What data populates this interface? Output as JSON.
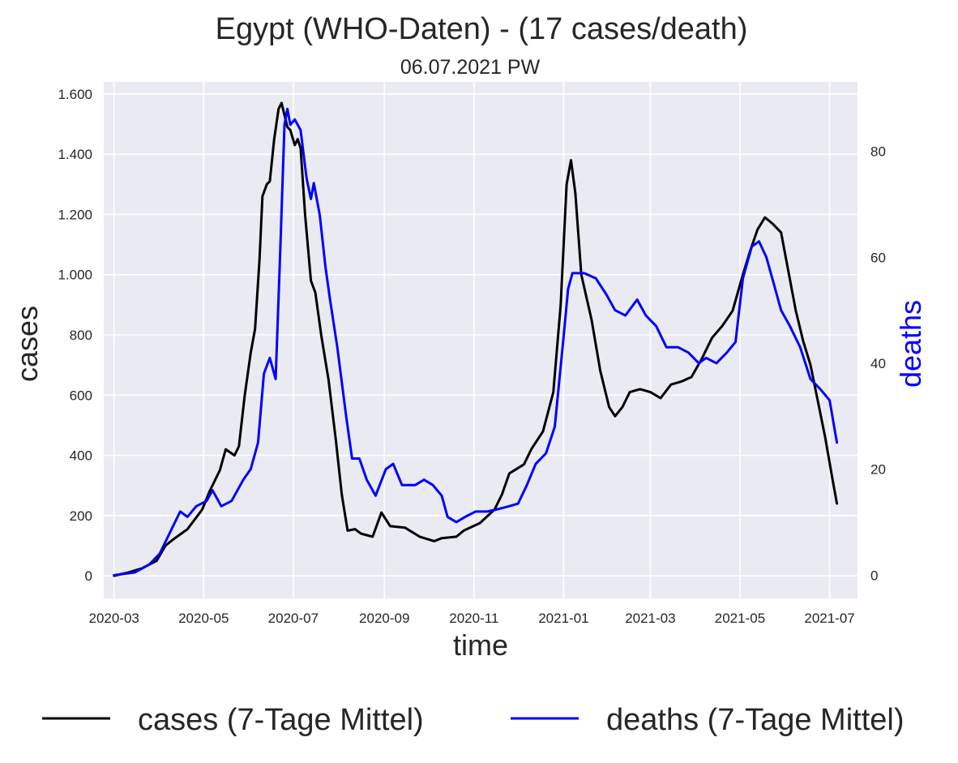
{
  "chart_data": {
    "type": "line",
    "title": "Egypt (WHO-Daten) - (17 cases/death)",
    "subtitle": "06.07.2021 PW",
    "xlabel": "time",
    "ylabel_left": "cases",
    "ylabel_right": "deaths",
    "x_ticks": [
      "2020-03",
      "2020-05",
      "2020-07",
      "2020-09",
      "2020-11",
      "2021-01",
      "2021-03",
      "2021-05",
      "2021-07"
    ],
    "y_left_ticks": [
      {
        "value": 0,
        "label": "0"
      },
      {
        "value": 200,
        "label": "200"
      },
      {
        "value": 400,
        "label": "400"
      },
      {
        "value": 600,
        "label": "600"
      },
      {
        "value": 800,
        "label": "800"
      },
      {
        "value": 1000,
        "label": "1.000"
      },
      {
        "value": 1200,
        "label": "1.200"
      },
      {
        "value": 1400,
        "label": "1.400"
      },
      {
        "value": 1600,
        "label": "1.600"
      }
    ],
    "y_right_ticks": [
      {
        "value": 0,
        "label": "0"
      },
      {
        "value": 20,
        "label": "20"
      },
      {
        "value": 40,
        "label": "40"
      },
      {
        "value": 60,
        "label": "60"
      },
      {
        "value": 80,
        "label": "80"
      }
    ],
    "x_range": [
      "2020-02-23",
      "2021-07-20"
    ],
    "ylim_left": [
      -75,
      1640
    ],
    "ylim_right": [
      -4.4,
      93.1
    ],
    "grid": true,
    "legend_position": "bottom, outside",
    "series": [
      {
        "name": "cases (7-Tage Mittel)",
        "color": "#000000",
        "axis": "left",
        "points": [
          [
            "2020-03-01",
            0
          ],
          [
            "2020-03-10",
            10
          ],
          [
            "2020-03-20",
            25
          ],
          [
            "2020-03-30",
            50
          ],
          [
            "2020-04-05",
            100
          ],
          [
            "2020-04-10",
            120
          ],
          [
            "2020-04-20",
            155
          ],
          [
            "2020-04-30",
            220
          ],
          [
            "2020-05-05",
            280
          ],
          [
            "2020-05-12",
            350
          ],
          [
            "2020-05-16",
            420
          ],
          [
            "2020-05-22",
            400
          ],
          [
            "2020-05-25",
            430
          ],
          [
            "2020-05-29",
            600
          ],
          [
            "2020-06-02",
            740
          ],
          [
            "2020-06-05",
            820
          ],
          [
            "2020-06-08",
            1050
          ],
          [
            "2020-06-10",
            1260
          ],
          [
            "2020-06-13",
            1300
          ],
          [
            "2020-06-15",
            1310
          ],
          [
            "2020-06-18",
            1450
          ],
          [
            "2020-06-21",
            1550
          ],
          [
            "2020-06-23",
            1570
          ],
          [
            "2020-06-25",
            1530
          ],
          [
            "2020-06-27",
            1490
          ],
          [
            "2020-06-29",
            1480
          ],
          [
            "2020-07-02",
            1430
          ],
          [
            "2020-07-04",
            1450
          ],
          [
            "2020-07-06",
            1420
          ],
          [
            "2020-07-09",
            1200
          ],
          [
            "2020-07-13",
            980
          ],
          [
            "2020-07-16",
            940
          ],
          [
            "2020-07-20",
            800
          ],
          [
            "2020-07-25",
            650
          ],
          [
            "2020-07-30",
            450
          ],
          [
            "2020-08-03",
            270
          ],
          [
            "2020-08-07",
            150
          ],
          [
            "2020-08-12",
            155
          ],
          [
            "2020-08-16",
            140
          ],
          [
            "2020-08-20",
            135
          ],
          [
            "2020-08-24",
            130
          ],
          [
            "2020-08-30",
            210
          ],
          [
            "2020-09-05",
            165
          ],
          [
            "2020-09-15",
            160
          ],
          [
            "2020-09-25",
            130
          ],
          [
            "2020-10-05",
            115
          ],
          [
            "2020-10-10",
            125
          ],
          [
            "2020-10-20",
            130
          ],
          [
            "2020-10-25",
            150
          ],
          [
            "2020-11-05",
            175
          ],
          [
            "2020-11-15",
            220
          ],
          [
            "2020-11-20",
            270
          ],
          [
            "2020-11-25",
            340
          ],
          [
            "2020-12-05",
            370
          ],
          [
            "2020-12-10",
            420
          ],
          [
            "2020-12-18",
            480
          ],
          [
            "2020-12-25",
            610
          ],
          [
            "2020-12-30",
            900
          ],
          [
            "2021-01-03",
            1300
          ],
          [
            "2021-01-06",
            1380
          ],
          [
            "2021-01-09",
            1270
          ],
          [
            "2021-01-13",
            1000
          ],
          [
            "2021-01-20",
            850
          ],
          [
            "2021-01-26",
            680
          ],
          [
            "2021-02-01",
            560
          ],
          [
            "2021-02-05",
            530
          ],
          [
            "2021-02-10",
            560
          ],
          [
            "2021-02-15",
            610
          ],
          [
            "2021-02-22",
            620
          ],
          [
            "2021-03-01",
            610
          ],
          [
            "2021-03-08",
            590
          ],
          [
            "2021-03-15",
            635
          ],
          [
            "2021-03-22",
            645
          ],
          [
            "2021-03-29",
            660
          ],
          [
            "2021-04-05",
            720
          ],
          [
            "2021-04-12",
            790
          ],
          [
            "2021-04-19",
            830
          ],
          [
            "2021-04-26",
            880
          ],
          [
            "2021-05-03",
            1000
          ],
          [
            "2021-05-08",
            1080
          ],
          [
            "2021-05-13",
            1150
          ],
          [
            "2021-05-18",
            1190
          ],
          [
            "2021-05-23",
            1170
          ],
          [
            "2021-05-29",
            1140
          ],
          [
            "2021-06-03",
            1010
          ],
          [
            "2021-06-08",
            880
          ],
          [
            "2021-06-13",
            780
          ],
          [
            "2021-06-18",
            700
          ],
          [
            "2021-06-23",
            580
          ],
          [
            "2021-06-28",
            460
          ],
          [
            "2021-07-03",
            320
          ],
          [
            "2021-07-06",
            240
          ]
        ]
      },
      {
        "name": "deaths (7-Tage Mittel)",
        "color": "#0000ff",
        "axis": "right",
        "points": [
          [
            "2020-03-01",
            0
          ],
          [
            "2020-03-15",
            0.5
          ],
          [
            "2020-03-25",
            2
          ],
          [
            "2020-04-01",
            4
          ],
          [
            "2020-04-08",
            8
          ],
          [
            "2020-04-15",
            12
          ],
          [
            "2020-04-20",
            11
          ],
          [
            "2020-04-26",
            13
          ],
          [
            "2020-05-03",
            14
          ],
          [
            "2020-05-07",
            16
          ],
          [
            "2020-05-13",
            13
          ],
          [
            "2020-05-20",
            14
          ],
          [
            "2020-05-28",
            18
          ],
          [
            "2020-06-02",
            20
          ],
          [
            "2020-06-07",
            25
          ],
          [
            "2020-06-11",
            38
          ],
          [
            "2020-06-15",
            41
          ],
          [
            "2020-06-19",
            37
          ],
          [
            "2020-06-22",
            60
          ],
          [
            "2020-06-25",
            85
          ],
          [
            "2020-06-27",
            88
          ],
          [
            "2020-06-29",
            85
          ],
          [
            "2020-07-02",
            86
          ],
          [
            "2020-07-06",
            84
          ],
          [
            "2020-07-10",
            75
          ],
          [
            "2020-07-13",
            71
          ],
          [
            "2020-07-15",
            74
          ],
          [
            "2020-07-19",
            68
          ],
          [
            "2020-07-23",
            58
          ],
          [
            "2020-07-26",
            52
          ],
          [
            "2020-07-31",
            43
          ],
          [
            "2020-08-06",
            30
          ],
          [
            "2020-08-10",
            22
          ],
          [
            "2020-08-15",
            22
          ],
          [
            "2020-08-20",
            18
          ],
          [
            "2020-08-26",
            15
          ],
          [
            "2020-09-02",
            20
          ],
          [
            "2020-09-07",
            21
          ],
          [
            "2020-09-13",
            17
          ],
          [
            "2020-09-22",
            17
          ],
          [
            "2020-09-28",
            18
          ],
          [
            "2020-10-04",
            17
          ],
          [
            "2020-10-10",
            15
          ],
          [
            "2020-10-14",
            11
          ],
          [
            "2020-10-20",
            10
          ],
          [
            "2020-10-26",
            11
          ],
          [
            "2020-11-02",
            12
          ],
          [
            "2020-11-10",
            12
          ],
          [
            "2020-11-18",
            12.5
          ],
          [
            "2020-11-25",
            13
          ],
          [
            "2020-12-01",
            13.5
          ],
          [
            "2020-12-07",
            17
          ],
          [
            "2020-12-13",
            21
          ],
          [
            "2020-12-20",
            23
          ],
          [
            "2020-12-26",
            28
          ],
          [
            "2021-01-01",
            45
          ],
          [
            "2021-01-04",
            54
          ],
          [
            "2021-01-07",
            57
          ],
          [
            "2021-01-15",
            57
          ],
          [
            "2021-01-23",
            56
          ],
          [
            "2021-01-30",
            53
          ],
          [
            "2021-02-05",
            50
          ],
          [
            "2021-02-12",
            49
          ],
          [
            "2021-02-20",
            52
          ],
          [
            "2021-02-26",
            49
          ],
          [
            "2021-03-05",
            47
          ],
          [
            "2021-03-12",
            43
          ],
          [
            "2021-03-20",
            43
          ],
          [
            "2021-03-27",
            42
          ],
          [
            "2021-04-03",
            40
          ],
          [
            "2021-04-08",
            41
          ],
          [
            "2021-04-15",
            40
          ],
          [
            "2021-04-22",
            42
          ],
          [
            "2021-04-28",
            44
          ],
          [
            "2021-05-03",
            56
          ],
          [
            "2021-05-09",
            62
          ],
          [
            "2021-05-14",
            63
          ],
          [
            "2021-05-19",
            60
          ],
          [
            "2021-05-24",
            55
          ],
          [
            "2021-05-29",
            50
          ],
          [
            "2021-06-04",
            47
          ],
          [
            "2021-06-11",
            43
          ],
          [
            "2021-06-18",
            37
          ],
          [
            "2021-06-25",
            35
          ],
          [
            "2021-07-01",
            33
          ],
          [
            "2021-07-06",
            25
          ]
        ]
      }
    ]
  }
}
